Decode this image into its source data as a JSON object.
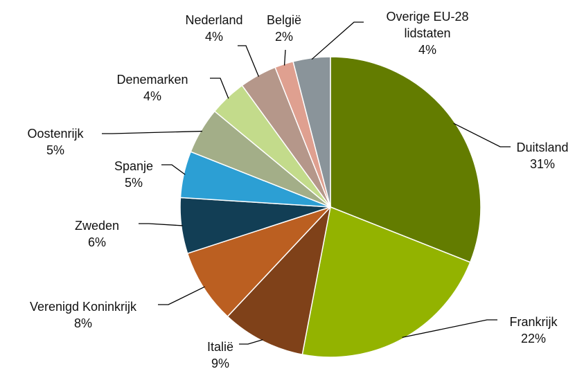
{
  "chart_data": {
    "type": "pie",
    "categories": [
      "Duitsland",
      "Frankrijk",
      "Italië",
      "Verenigd Koninkrijk",
      "Zweden",
      "Spanje",
      "Oostenrijk",
      "Denemarken",
      "Nederland",
      "België",
      "Overige EU-28 lidstaten"
    ],
    "values": [
      31,
      22,
      9,
      8,
      6,
      5,
      5,
      4,
      4,
      2,
      4
    ],
    "value_labels": [
      "31%",
      "22%",
      "9%",
      "8%",
      "6%",
      "5%",
      "5%",
      "4%",
      "4%",
      "2%",
      "4%"
    ],
    "colors": [
      "#637c00",
      "#93b300",
      "#7f4119",
      "#bb5f21",
      "#123e55",
      "#2c9fd4",
      "#a3ae88",
      "#c3db8b",
      "#b5978a",
      "#dfa090",
      "#8a949a"
    ]
  }
}
